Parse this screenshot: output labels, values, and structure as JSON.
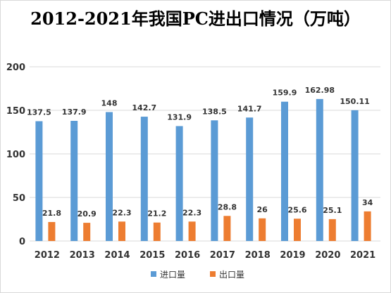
{
  "colors": {
    "import": "#5b9bd5",
    "export": "#ed7d31",
    "grid": "#d9d9d9",
    "text": "#333333"
  },
  "chart_data": {
    "type": "bar",
    "title": "2012-2021年我国PC进出口情况（万吨）",
    "categories": [
      "2012",
      "2013",
      "2014",
      "2015",
      "2016",
      "2017",
      "2018",
      "2019",
      "2020",
      "2021"
    ],
    "series": [
      {
        "name": "进口量",
        "values": [
          137.5,
          137.9,
          148,
          142.7,
          131.9,
          138.5,
          141.7,
          159.9,
          162.98,
          150.11
        ]
      },
      {
        "name": "出口量",
        "values": [
          21.8,
          20.9,
          22.3,
          21.2,
          22.3,
          28.8,
          26,
          25.6,
          25.1,
          34
        ]
      }
    ],
    "ylim": [
      0,
      200
    ],
    "yticks": [
      0,
      50,
      100,
      150,
      200
    ],
    "grid": true,
    "legend": "bottom",
    "data_labels": true
  }
}
